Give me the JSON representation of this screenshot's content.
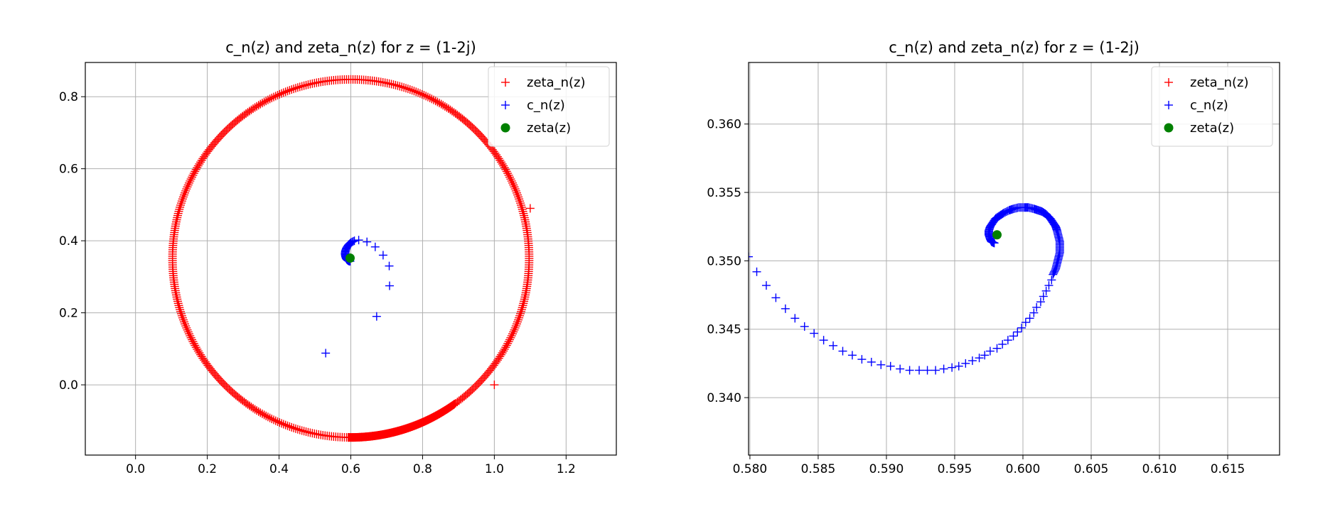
{
  "chart_data": [
    {
      "type": "scatter",
      "title": "c_n(z) and zeta_n(z) for z = (1-2j)",
      "xlabel": "",
      "ylabel": "",
      "xlim": [
        -0.14,
        1.34
      ],
      "ylim": [
        -0.195,
        0.895
      ],
      "xticks": [
        "0.0",
        "0.2",
        "0.4",
        "0.6",
        "0.8",
        "1.0",
        "1.2"
      ],
      "yticks": [
        "0.0",
        "0.2",
        "0.4",
        "0.6",
        "0.8"
      ],
      "grid": true,
      "legend_position": "top-right",
      "legend": [
        "zeta_n(z)",
        "c_n(z)",
        "zeta(z)"
      ],
      "series": [
        {
          "name": "zeta_n(z)",
          "marker": "+",
          "color": "#ff0000",
          "shape": "circle-ring",
          "center": [
            0.6,
            0.351
          ],
          "radius": 0.497,
          "point_count": 520,
          "extra_points": [
            [
              1.0,
              0.0
            ],
            [
              1.1,
              0.49
            ]
          ]
        },
        {
          "name": "c_n(z)",
          "marker": "+",
          "color": "#0000ff",
          "points": [
            [
              0.53,
              0.088
            ],
            [
              0.672,
              0.19
            ],
            [
              0.708,
              0.275
            ],
            [
              0.707,
              0.33
            ],
            [
              0.69,
              0.36
            ],
            [
              0.668,
              0.383
            ],
            [
              0.645,
              0.397
            ],
            [
              0.622,
              0.402
            ],
            [
              0.61,
              0.4
            ],
            [
              0.6,
              0.395
            ],
            [
              0.593,
              0.388
            ],
            [
              0.588,
              0.38
            ],
            [
              0.585,
              0.372
            ],
            [
              0.584,
              0.364
            ],
            [
              0.585,
              0.357
            ],
            [
              0.587,
              0.351
            ],
            [
              0.59,
              0.347
            ],
            [
              0.594,
              0.344
            ],
            [
              0.598,
              0.343
            ]
          ]
        },
        {
          "name": "zeta(z)",
          "marker": "o",
          "color": "#008000",
          "points": [
            [
              0.598,
              0.352
            ]
          ]
        }
      ]
    },
    {
      "type": "scatter",
      "title": "c_n(z) and zeta_n(z) for z = (1-2j)",
      "xlabel": "",
      "ylabel": "",
      "xlim": [
        0.5799,
        0.6188
      ],
      "ylim": [
        0.3358,
        0.3645
      ],
      "xticks": [
        "0.580",
        "0.585",
        "0.590",
        "0.595",
        "0.600",
        "0.605",
        "0.610",
        "0.615"
      ],
      "yticks": [
        "0.340",
        "0.345",
        "0.350",
        "0.355",
        "0.360"
      ],
      "grid": true,
      "legend_position": "top-right",
      "legend": [
        "zeta_n(z)",
        "c_n(z)",
        "zeta(z)"
      ],
      "series": [
        {
          "name": "zeta_n(z)",
          "marker": "+",
          "color": "#ff0000",
          "points": []
        },
        {
          "name": "c_n(z)",
          "marker": "+",
          "color": "#0000ff",
          "points": [
            [
              0.5799,
              0.3503
            ],
            [
              0.5805,
              0.3492
            ],
            [
              0.5812,
              0.3482
            ],
            [
              0.5819,
              0.3473
            ],
            [
              0.5826,
              0.3465
            ],
            [
              0.5833,
              0.3458
            ],
            [
              0.584,
              0.3452
            ],
            [
              0.5847,
              0.3447
            ],
            [
              0.5854,
              0.3442
            ],
            [
              0.5861,
              0.3438
            ],
            [
              0.5868,
              0.3434
            ],
            [
              0.5875,
              0.3431
            ],
            [
              0.5882,
              0.3428
            ],
            [
              0.5889,
              0.3426
            ],
            [
              0.5896,
              0.3424
            ],
            [
              0.5903,
              0.3423
            ],
            [
              0.591,
              0.3421
            ],
            [
              0.5917,
              0.342
            ],
            [
              0.5924,
              0.342
            ],
            [
              0.593,
              0.342
            ],
            [
              0.5936,
              0.342
            ],
            [
              0.5942,
              0.3421
            ],
            [
              0.5948,
              0.3422
            ],
            [
              0.5953,
              0.3423
            ],
            [
              0.5958,
              0.3425
            ],
            [
              0.5963,
              0.3427
            ],
            [
              0.5968,
              0.3429
            ],
            [
              0.5972,
              0.3431
            ],
            [
              0.5976,
              0.3434
            ],
            [
              0.5981,
              0.3436
            ],
            [
              0.5985,
              0.3439
            ],
            [
              0.5989,
              0.3442
            ],
            [
              0.5993,
              0.3445
            ],
            [
              0.5996,
              0.3448
            ],
            [
              0.5999,
              0.3451
            ],
            [
              0.6002,
              0.3455
            ],
            [
              0.6005,
              0.3458
            ],
            [
              0.6008,
              0.3462
            ],
            [
              0.601,
              0.3466
            ],
            [
              0.6013,
              0.347
            ],
            [
              0.6015,
              0.3474
            ],
            [
              0.6017,
              0.3478
            ],
            [
              0.6019,
              0.3482
            ],
            [
              0.6021,
              0.3486
            ],
            [
              0.6022,
              0.349
            ],
            [
              0.6024,
              0.3494
            ],
            [
              0.6025,
              0.3498
            ],
            [
              0.6026,
              0.3502
            ],
            [
              0.6027,
              0.3506
            ],
            [
              0.6027,
              0.351
            ],
            [
              0.6027,
              0.3514
            ],
            [
              0.6026,
              0.3518
            ],
            [
              0.6025,
              0.3522
            ],
            [
              0.6024,
              0.3525
            ],
            [
              0.6022,
              0.3528
            ],
            [
              0.602,
              0.3531
            ],
            [
              0.6017,
              0.3534
            ],
            [
              0.6014,
              0.3536
            ],
            [
              0.6011,
              0.3537
            ],
            [
              0.6008,
              0.3538
            ],
            [
              0.6004,
              0.3539
            ],
            [
              0.6001,
              0.3539
            ],
            [
              0.5997,
              0.3539
            ],
            [
              0.5993,
              0.3538
            ],
            [
              0.599,
              0.3537
            ],
            [
              0.5986,
              0.3535
            ],
            [
              0.5983,
              0.3533
            ],
            [
              0.598,
              0.3531
            ],
            [
              0.5978,
              0.3528
            ],
            [
              0.5976,
              0.3525
            ],
            [
              0.5975,
              0.3522
            ],
            [
              0.5975,
              0.3519
            ],
            [
              0.5976,
              0.3516
            ],
            [
              0.5977,
              0.3514
            ],
            [
              0.5979,
              0.3513
            ]
          ]
        },
        {
          "name": "zeta(z)",
          "marker": "o",
          "color": "#008000",
          "points": [
            [
              0.5981,
              0.3519
            ]
          ]
        }
      ]
    }
  ]
}
